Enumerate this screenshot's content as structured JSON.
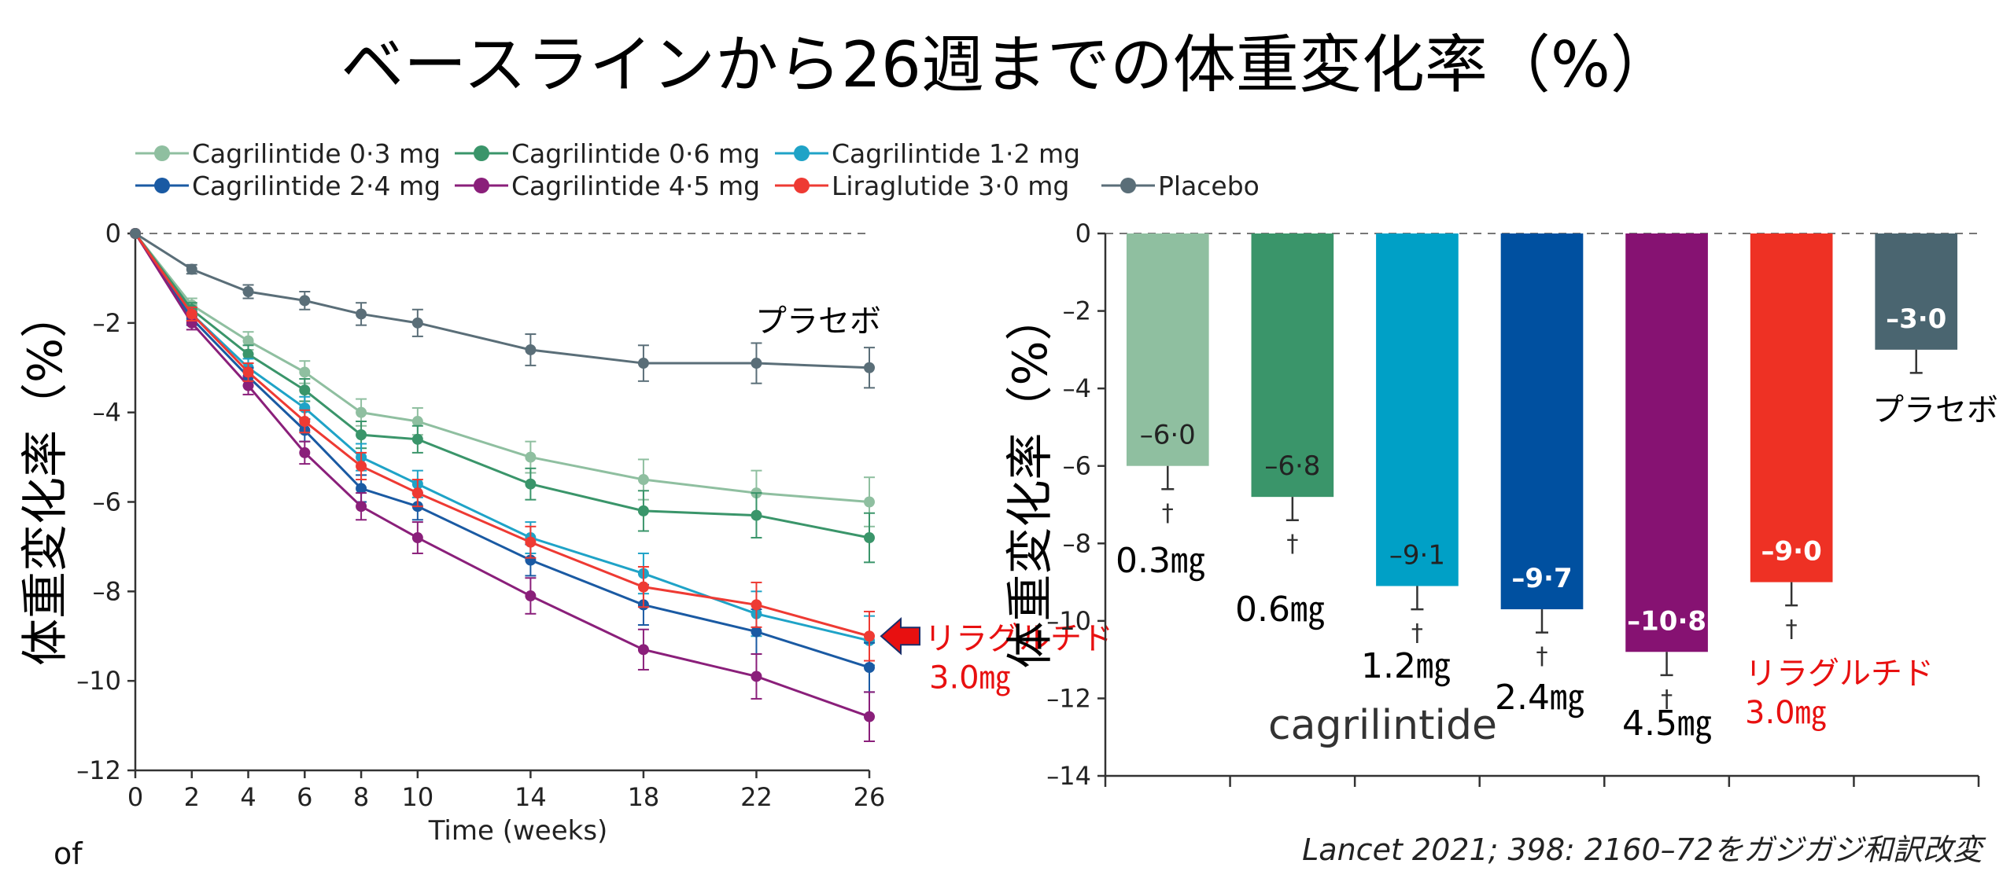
{
  "title": "ベースラインから26週までの体重変化率（%）",
  "source_note": "Lancet 2021; 398: 2160–72をガジガジ和訳改変",
  "stray_text": "of",
  "legend": [
    {
      "label": "Cagrilintide 0·3 mg",
      "color": "#8fbfa0"
    },
    {
      "label": "Cagrilintide 0·6 mg",
      "color": "#3a956a"
    },
    {
      "label": "Cagrilintide 1·2 mg",
      "color": "#1fa3c7"
    },
    {
      "label": "Cagrilintide 2·4 mg",
      "color": "#1a5aa3"
    },
    {
      "label": "Cagrilintide 4·5 mg",
      "color": "#8a1f7a"
    },
    {
      "label": "Liraglutide 3·0 mg",
      "color": "#ee3a33"
    },
    {
      "label": "Placebo",
      "color": "#5a6e78"
    }
  ],
  "chart_data": [
    {
      "type": "line",
      "xlabel": "Time (weeks)",
      "ylabel": "体重変化率（%）",
      "x": [
        0,
        2,
        4,
        6,
        8,
        10,
        14,
        18,
        22,
        26
      ],
      "xlim": [
        0,
        26
      ],
      "ylim": [
        -12,
        0
      ],
      "yticks": [
        0,
        -2,
        -4,
        -6,
        -8,
        -10,
        -12
      ],
      "ytick_labels": [
        "0",
        "–2",
        "–4",
        "–6",
        "–8",
        "–10",
        "–12"
      ],
      "xtick_labels": [
        "0",
        "2",
        "4",
        "6",
        "8",
        "10",
        "14",
        "18",
        "22",
        "26"
      ],
      "series": [
        {
          "name": "Cagrilintide 0·3 mg",
          "color": "#8fbfa0",
          "values": [
            0,
            -1.6,
            -2.4,
            -3.1,
            -4.0,
            -4.2,
            -5.0,
            -5.5,
            -5.8,
            -6.0
          ],
          "err": [
            0,
            0.15,
            0.2,
            0.25,
            0.3,
            0.3,
            0.35,
            0.45,
            0.5,
            0.55
          ]
        },
        {
          "name": "Cagrilintide 0·6 mg",
          "color": "#3a956a",
          "values": [
            0,
            -1.7,
            -2.7,
            -3.5,
            -4.5,
            -4.6,
            -5.6,
            -6.2,
            -6.3,
            -6.8
          ],
          "err": [
            0,
            0.15,
            0.2,
            0.25,
            0.3,
            0.3,
            0.35,
            0.45,
            0.5,
            0.55
          ]
        },
        {
          "name": "Cagrilintide 1·2 mg",
          "color": "#1fa3c7",
          "values": [
            0,
            -1.8,
            -3.0,
            -3.9,
            -5.0,
            -5.6,
            -6.8,
            -7.6,
            -8.5,
            -9.1
          ],
          "err": [
            0,
            0.15,
            0.2,
            0.25,
            0.3,
            0.3,
            0.35,
            0.45,
            0.5,
            0.55
          ]
        },
        {
          "name": "Cagrilintide 2·4 mg",
          "color": "#1a5aa3",
          "values": [
            0,
            -1.9,
            -3.2,
            -4.4,
            -5.7,
            -6.1,
            -7.3,
            -8.3,
            -8.9,
            -9.7
          ],
          "err": [
            0,
            0.15,
            0.2,
            0.25,
            0.3,
            0.3,
            0.35,
            0.45,
            0.5,
            0.55
          ]
        },
        {
          "name": "Cagrilintide 4·5 mg",
          "color": "#8a1f7a",
          "values": [
            0,
            -2.0,
            -3.4,
            -4.9,
            -6.1,
            -6.8,
            -8.1,
            -9.3,
            -9.9,
            -10.8
          ],
          "err": [
            0,
            0.15,
            0.2,
            0.25,
            0.3,
            0.35,
            0.4,
            0.45,
            0.5,
            0.55
          ]
        },
        {
          "name": "Liraglutide 3·0 mg",
          "color": "#ee3a33",
          "values": [
            0,
            -1.8,
            -3.1,
            -4.2,
            -5.2,
            -5.8,
            -6.9,
            -7.9,
            -8.3,
            -9.0
          ],
          "err": [
            0,
            0.15,
            0.2,
            0.25,
            0.3,
            0.3,
            0.35,
            0.45,
            0.5,
            0.55
          ]
        },
        {
          "name": "Placebo",
          "color": "#5a6e78",
          "values": [
            0,
            -0.8,
            -1.3,
            -1.5,
            -1.8,
            -2.0,
            -2.6,
            -2.9,
            -2.9,
            -3.0
          ],
          "err": [
            0,
            0.1,
            0.15,
            0.2,
            0.25,
            0.3,
            0.35,
            0.4,
            0.45,
            0.45
          ]
        }
      ],
      "annotations": [
        {
          "text": "プラセボ",
          "color": "#000000"
        },
        {
          "text": "リラグルチド",
          "color": "#e81010"
        },
        {
          "text": "3.0㎎",
          "color": "#e81010"
        }
      ]
    },
    {
      "type": "bar",
      "ylabel": "体重変化率（%）",
      "ylim": [
        -14,
        0
      ],
      "yticks": [
        0,
        -2,
        -4,
        -6,
        -8,
        -10,
        -12,
        -14
      ],
      "ytick_labels": [
        "0",
        "–2",
        "–4",
        "–6",
        "–8",
        "–10",
        "–12",
        "–14"
      ],
      "categories": [
        "0.3㎎",
        "0.6㎎",
        "1.2㎎",
        "2.4㎎",
        "4.5㎎",
        "リラグルチド 3.0㎎",
        "プラセボ"
      ],
      "values": [
        -6.0,
        -6.8,
        -9.1,
        -9.7,
        -10.8,
        -9.0,
        -3.0
      ],
      "value_labels": [
        "–6·0",
        "–6·8",
        "–9·1",
        "–9·7",
        "–10·8",
        "–9·0",
        "–3·0"
      ],
      "err": [
        0.6,
        0.6,
        0.6,
        0.6,
        0.6,
        0.6,
        0.6
      ],
      "colors": [
        "#8fbfa0",
        "#3a956a",
        "#00a0c6",
        "#0050a0",
        "#861272",
        "#ee3124",
        "#4a6570"
      ],
      "label_colors": [
        "#222222",
        "#222222",
        "#222222",
        "#ffffff",
        "#ffffff",
        "#ffffff",
        "#ffffff"
      ],
      "significance": [
        "†",
        "†",
        "†",
        "†",
        "†",
        "†",
        ""
      ],
      "category_label_colors": [
        "#000000",
        "#000000",
        "#000000",
        "#000000",
        "#000000",
        "#e81010",
        "#000000"
      ],
      "group_label": "cagrilintide"
    }
  ]
}
